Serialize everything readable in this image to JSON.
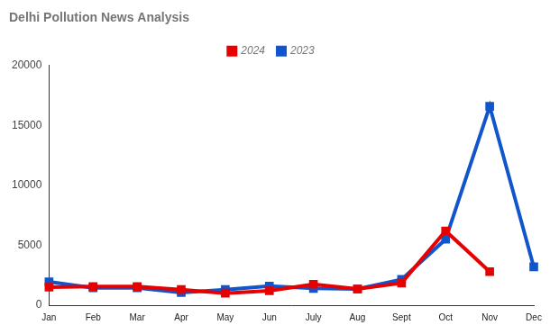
{
  "chart_data": {
    "type": "line",
    "title": "Delhi Pollution News Analysis",
    "categories": [
      "Jan",
      "Feb",
      "Mar",
      "Apr",
      "May",
      "Jun",
      "July",
      "Aug",
      "Sept",
      "Oct",
      "Nov",
      "Dec"
    ],
    "series": [
      {
        "name": "2024",
        "color": "#e60000",
        "values": [
          1500,
          1550,
          1550,
          1300,
          1000,
          1200,
          1750,
          1350,
          1850,
          6200,
          2800,
          null
        ]
      },
      {
        "name": "2023",
        "color": "#1155cc",
        "values": [
          1950,
          1450,
          1450,
          1050,
          1300,
          1600,
          1400,
          1350,
          2150,
          5500,
          16600,
          3200
        ]
      }
    ],
    "ylim": [
      0,
      20000
    ],
    "yticks": [
      0,
      5000,
      10000,
      15000,
      20000
    ],
    "grid": false,
    "legend": "top",
    "marker": "square",
    "line_style": "solid"
  }
}
